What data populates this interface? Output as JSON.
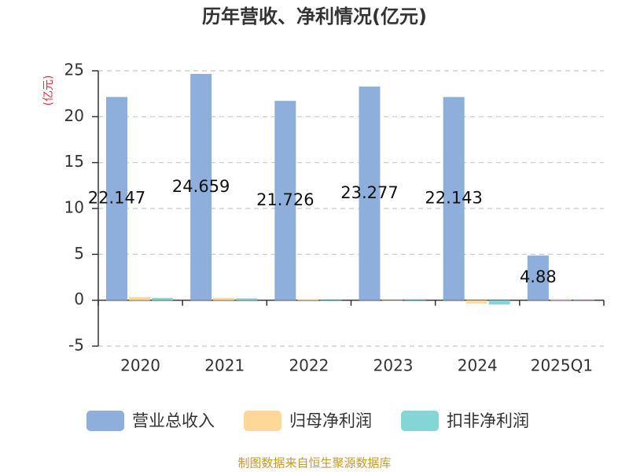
{
  "chart_data": {
    "type": "bar",
    "title": "历年营收、净利情况(亿元)",
    "y_label": "(亿元)",
    "categories": [
      "2020",
      "2021",
      "2022",
      "2023",
      "2024",
      "2025Q1"
    ],
    "series": [
      {
        "name": "营业总收入",
        "color": "#8eaedb",
        "values": [
          22.147,
          24.659,
          21.726,
          23.277,
          22.143,
          4.88
        ],
        "labels": true
      },
      {
        "name": "归母净利润",
        "color": "#fdd898",
        "values": [
          0.35,
          0.25,
          0.1,
          -0.05,
          -0.35,
          0.05
        ],
        "labels": false
      },
      {
        "name": "扣非净利润",
        "color": "#84d5d6",
        "values": [
          0.25,
          0.2,
          -0.1,
          -0.1,
          -0.45,
          0.03
        ],
        "labels": false
      }
    ],
    "ylim": [
      -5,
      25
    ],
    "yticks": [
      -5,
      0,
      5,
      10,
      15,
      20,
      25
    ],
    "grid": true,
    "legend": "bottom",
    "source": "制图数据来自恒生聚源数据库"
  }
}
